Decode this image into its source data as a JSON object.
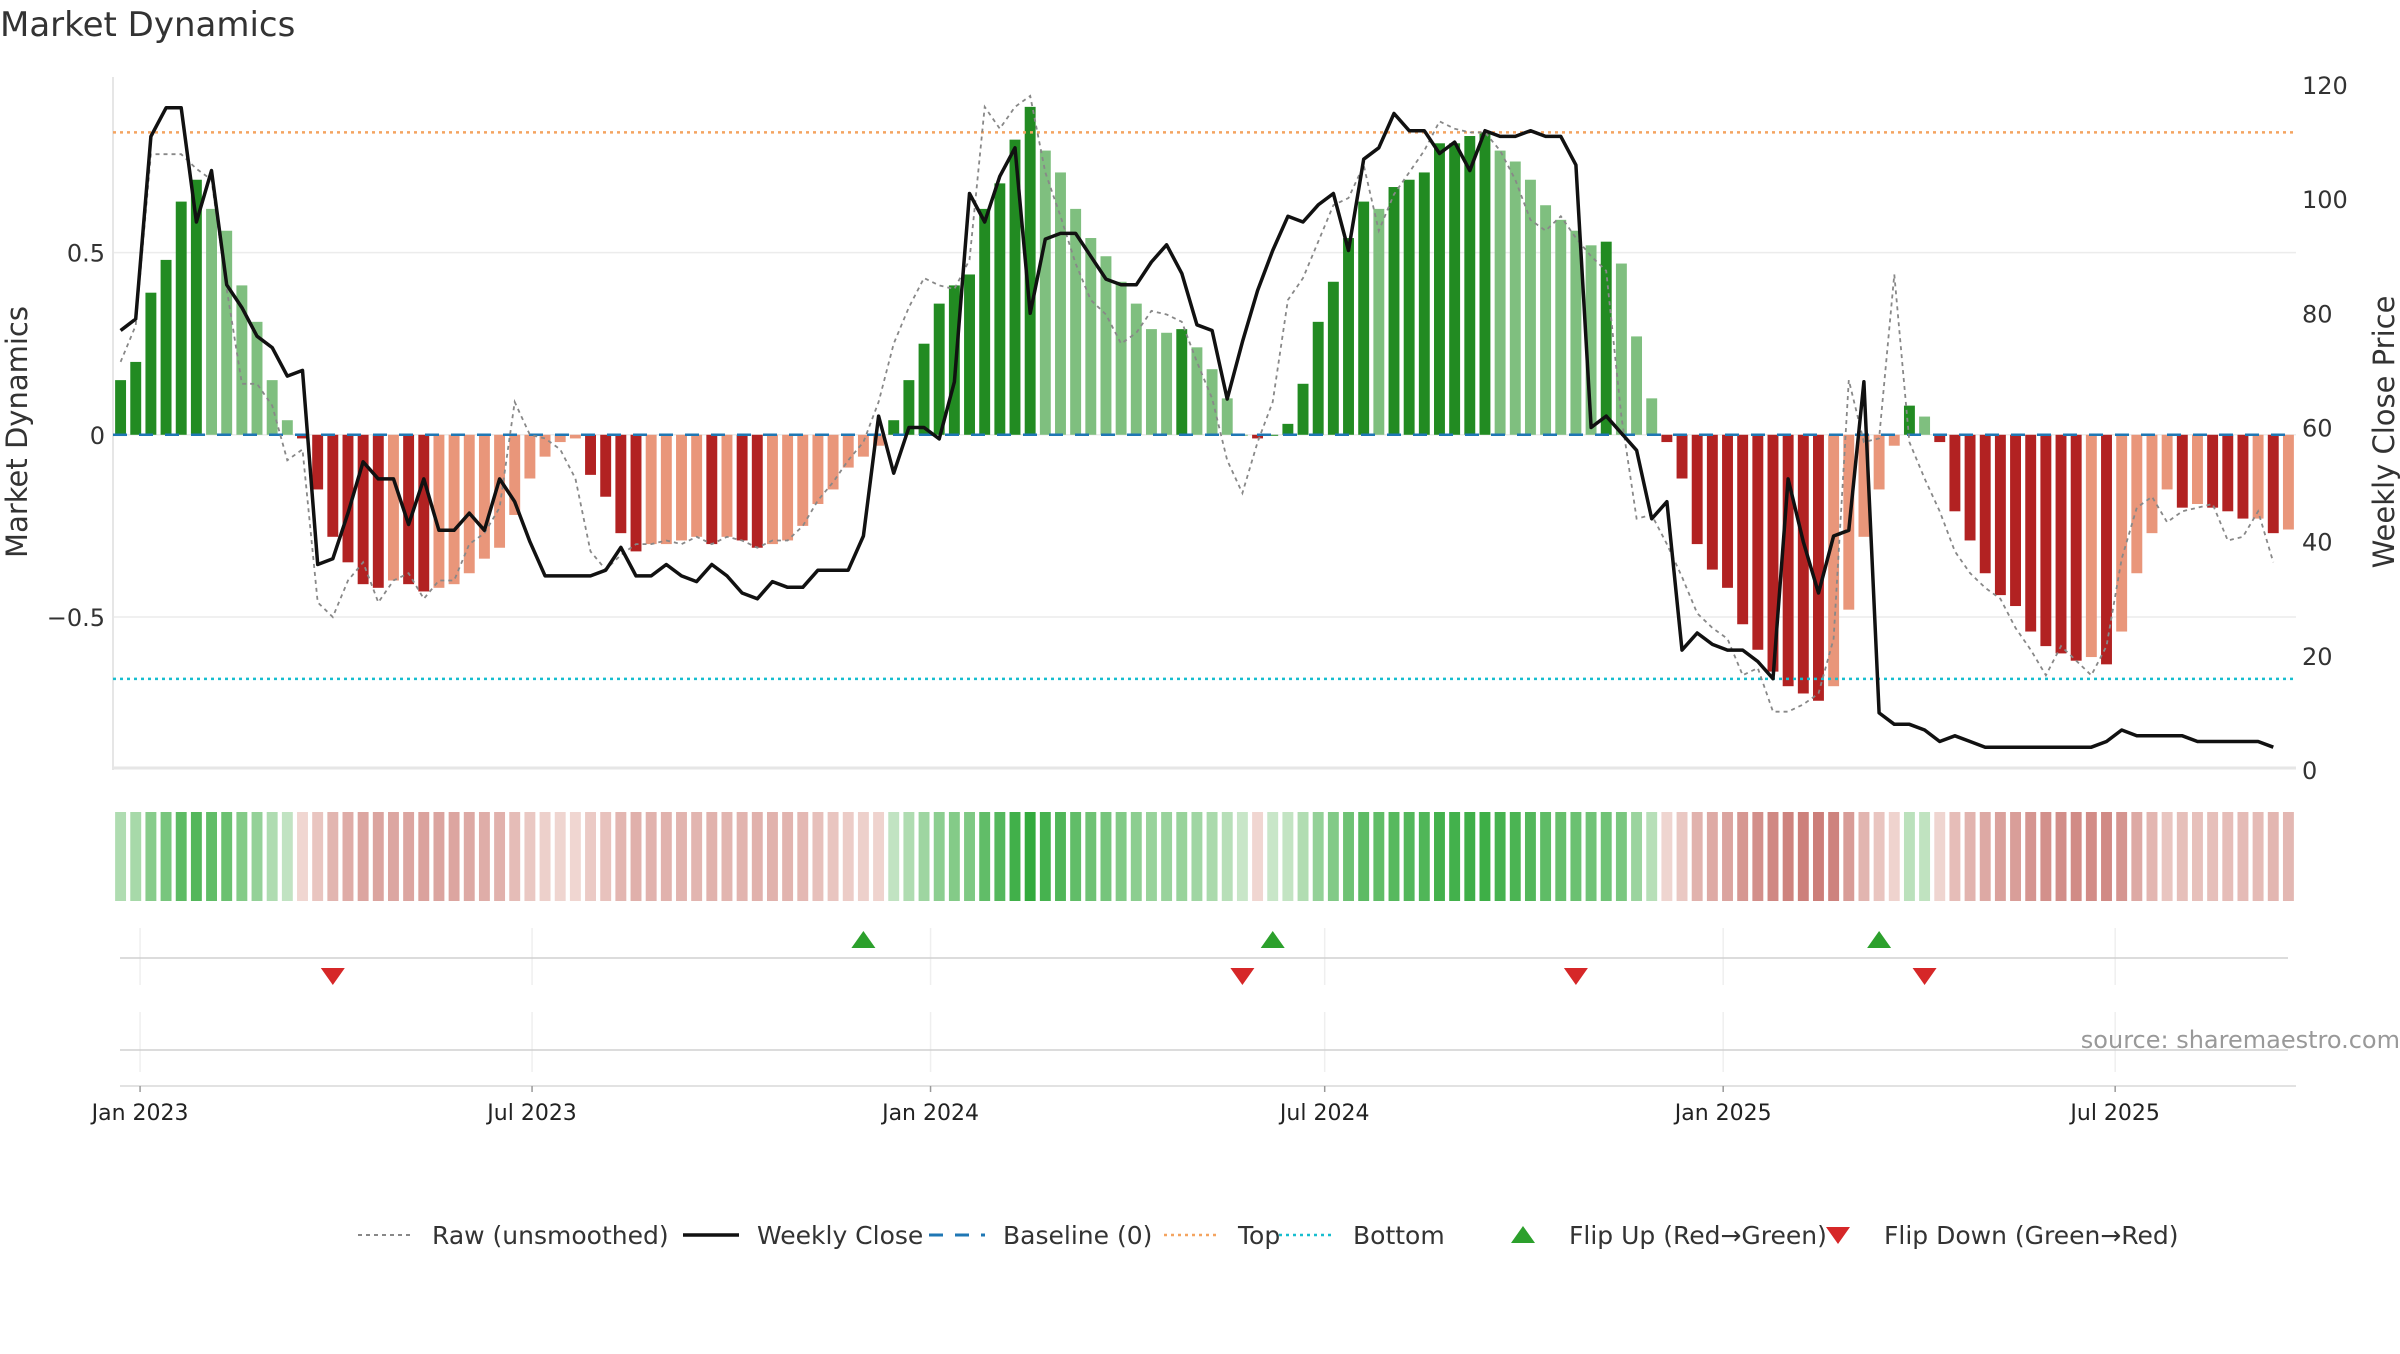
{
  "chart_data": {
    "type": "bar",
    "title": "Market Dynamics",
    "ylabel": "Market Dynamics",
    "ylabel_right": "Weekly Close Price",
    "source": "source: sharemaestro.com",
    "ylim": [
      -0.92,
      0.96
    ],
    "ylim_right": [
      0,
      120
    ],
    "yticks": [
      0.5,
      0,
      -0.5
    ],
    "ytick_labels": [
      "0.5",
      "0",
      "−0.5"
    ],
    "yticks_right": [
      0,
      20,
      40,
      60,
      80,
      100,
      120
    ],
    "ytick_labels_right": [
      "0",
      "20",
      "40",
      "60",
      "80",
      "100",
      "120"
    ],
    "x_start": "2022-12-23",
    "x_step_days": 7,
    "x_ticks": [
      "2023-01-01",
      "2023-07-01",
      "2024-01-01",
      "2024-07-01",
      "2025-01-01",
      "2025-07-01"
    ],
    "x_tick_labels": [
      "Jan 2023",
      "Jul 2023",
      "Jan 2024",
      "Jul 2024",
      "Jan 2025",
      "Jul 2025"
    ],
    "top_level": 0.83,
    "bottom_level": -0.67,
    "grid": true,
    "legend_position": "bottom-center",
    "colors": {
      "green_dark": "#228b22",
      "green_light": "#7fbf7f",
      "red_dark": "#b22222",
      "red_light": "#e9967a",
      "raw_line": "#888888",
      "close_line": "#111111",
      "baseline": "#1f77b4",
      "top": "#f4a460",
      "bottom": "#17becf",
      "flip_up": "#2ca02c",
      "flip_down": "#d62728"
    },
    "series": [
      {
        "name": "Market Dynamics",
        "values": [
          0.15,
          0.2,
          0.39,
          0.48,
          0.64,
          0.7,
          0.62,
          0.56,
          0.41,
          0.31,
          0.15,
          0.04,
          -0.01,
          -0.15,
          -0.28,
          -0.35,
          -0.41,
          -0.42,
          -0.4,
          -0.41,
          -0.43,
          -0.42,
          -0.41,
          -0.38,
          -0.34,
          -0.31,
          -0.22,
          -0.12,
          -0.06,
          -0.02,
          -0.01,
          -0.11,
          -0.17,
          -0.27,
          -0.32,
          -0.3,
          -0.3,
          -0.29,
          -0.28,
          -0.3,
          -0.28,
          -0.29,
          -0.31,
          -0.3,
          -0.29,
          -0.25,
          -0.19,
          -0.15,
          -0.09,
          -0.06,
          -0.03,
          0.04,
          0.15,
          0.25,
          0.36,
          0.41,
          0.44,
          0.62,
          0.69,
          0.81,
          0.9,
          0.78,
          0.72,
          0.62,
          0.54,
          0.49,
          0.42,
          0.36,
          0.29,
          0.28,
          0.29,
          0.24,
          0.18,
          0.1,
          0.0,
          -0.01,
          0.0,
          0.03,
          0.14,
          0.31,
          0.42,
          0.54,
          0.64,
          0.62,
          0.68,
          0.7,
          0.72,
          0.8,
          0.8,
          0.82,
          0.83,
          0.78,
          0.75,
          0.7,
          0.63,
          0.59,
          0.56,
          0.52,
          0.53,
          0.47,
          0.27,
          0.1,
          -0.02,
          -0.12,
          -0.3,
          -0.37,
          -0.42,
          -0.52,
          -0.59,
          -0.65,
          -0.69,
          -0.71,
          -0.73,
          -0.69,
          -0.48,
          -0.28,
          -0.15,
          -0.03,
          0.08,
          0.05,
          -0.02,
          -0.21,
          -0.29,
          -0.38,
          -0.44,
          -0.47,
          -0.54,
          -0.58,
          -0.6,
          -0.62,
          -0.61,
          -0.63,
          -0.54,
          -0.38,
          -0.27,
          -0.15,
          -0.2,
          -0.19,
          -0.2,
          -0.21,
          -0.23,
          -0.23,
          -0.27,
          -0.26
        ]
      },
      {
        "name": "Raw (unsmoothed)",
        "values": [
          0.2,
          0.3,
          0.77,
          0.77,
          0.77,
          0.73,
          0.7,
          0.4,
          0.14,
          0.14,
          0.08,
          -0.07,
          -0.04,
          -0.46,
          -0.5,
          -0.4,
          -0.35,
          -0.46,
          -0.4,
          -0.38,
          -0.45,
          -0.4,
          -0.4,
          -0.3,
          -0.27,
          -0.2,
          0.09,
          0.0,
          -0.01,
          -0.04,
          -0.12,
          -0.32,
          -0.37,
          -0.33,
          -0.3,
          -0.3,
          -0.29,
          -0.3,
          -0.28,
          -0.3,
          -0.28,
          -0.29,
          -0.31,
          -0.29,
          -0.29,
          -0.25,
          -0.18,
          -0.13,
          -0.07,
          -0.02,
          0.09,
          0.25,
          0.35,
          0.43,
          0.41,
          0.4,
          0.48,
          0.9,
          0.84,
          0.9,
          0.93,
          0.72,
          0.6,
          0.47,
          0.37,
          0.33,
          0.25,
          0.28,
          0.34,
          0.33,
          0.31,
          0.2,
          0.1,
          -0.07,
          -0.16,
          -0.02,
          0.09,
          0.37,
          0.43,
          0.53,
          0.63,
          0.65,
          0.74,
          0.56,
          0.66,
          0.72,
          0.78,
          0.86,
          0.84,
          0.83,
          0.83,
          0.78,
          0.7,
          0.59,
          0.56,
          0.6,
          0.54,
          0.49,
          0.45,
          0.05,
          -0.23,
          -0.22,
          -0.3,
          -0.39,
          -0.49,
          -0.53,
          -0.56,
          -0.66,
          -0.64,
          -0.76,
          -0.76,
          -0.74,
          -0.71,
          -0.56,
          0.15,
          -0.02,
          -0.01,
          0.44,
          -0.02,
          -0.12,
          -0.21,
          -0.32,
          -0.38,
          -0.42,
          -0.45,
          -0.53,
          -0.59,
          -0.66,
          -0.58,
          -0.62,
          -0.66,
          -0.58,
          -0.34,
          -0.2,
          -0.17,
          -0.24,
          -0.21,
          -0.2,
          -0.19,
          -0.29,
          -0.28,
          -0.21,
          -0.35
        ]
      },
      {
        "name": "Weekly Close",
        "axis": "right",
        "values": [
          77,
          79,
          111,
          116,
          116,
          96,
          105,
          85,
          81,
          76,
          74,
          69,
          70,
          36,
          37,
          45,
          54,
          51,
          51,
          43,
          51,
          42,
          42,
          45,
          42,
          51,
          47,
          40,
          34,
          34,
          34,
          34,
          35,
          39,
          34,
          34,
          36,
          34,
          33,
          36,
          34,
          31,
          30,
          33,
          32,
          32,
          35,
          35,
          35,
          41,
          62,
          52,
          60,
          60,
          58,
          68,
          101,
          96,
          104,
          109,
          80,
          93,
          94,
          94,
          90,
          86,
          85,
          85,
          89,
          92,
          87,
          78,
          77,
          65,
          75,
          84,
          91,
          97,
          96,
          99,
          101,
          91,
          107,
          109,
          115,
          112,
          112,
          108,
          110,
          105,
          112,
          111,
          111,
          112,
          111,
          111,
          106,
          60,
          62,
          59,
          56,
          44,
          47,
          21,
          24,
          22,
          21,
          21,
          19,
          16,
          51,
          40,
          31,
          41,
          42,
          68,
          10,
          8,
          8,
          7,
          5,
          6,
          5,
          4,
          4,
          4,
          4,
          4,
          4,
          4,
          4,
          5,
          7,
          6,
          6,
          6,
          6,
          5,
          5,
          5,
          5,
          5,
          4
        ]
      }
    ],
    "strip_color_map": "green/red intensity proportional to Market Dynamics value",
    "flips": [
      {
        "type": "down",
        "date": "2023-03-31"
      },
      {
        "type": "up",
        "date": "2023-12-01"
      },
      {
        "type": "down",
        "date": "2024-05-24"
      },
      {
        "type": "up",
        "date": "2024-06-07"
      },
      {
        "type": "down",
        "date": "2024-10-25"
      },
      {
        "type": "up",
        "date": "2025-03-14"
      },
      {
        "type": "down",
        "date": "2025-04-04"
      }
    ],
    "legend": [
      {
        "label": "Raw (unsmoothed)",
        "style": "dotted-gray"
      },
      {
        "label": "Weekly Close",
        "style": "solid-black"
      },
      {
        "label": "Baseline (0)",
        "style": "dashed-blue"
      },
      {
        "label": "Top",
        "style": "dotted-orange"
      },
      {
        "label": "Bottom",
        "style": "dotted-cyan"
      },
      {
        "label": "Flip Up (Red→Green)",
        "style": "triangle-up-green"
      },
      {
        "label": "Flip Down (Green→Red)",
        "style": "triangle-down-red"
      }
    ]
  }
}
